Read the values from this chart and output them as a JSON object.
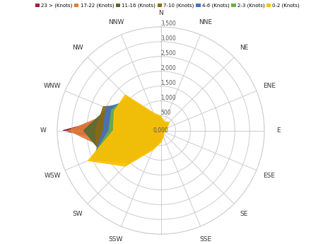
{
  "directions": [
    "N",
    "NNE",
    "NE",
    "ENE",
    "E",
    "ESE",
    "SE",
    "SSE",
    "S",
    "SSW",
    "SW",
    "WSW",
    "W",
    "WNW",
    "NW",
    "NNW"
  ],
  "speed_categories": [
    "23 > (Knots)",
    "17-22 (Knots)",
    "11-16 (Knots)",
    "7-10 (Knots)",
    "4-6 (Knots)",
    "2-3 (Knots)",
    "0-2 (Knots)"
  ],
  "colors": [
    "#9B2335",
    "#E07B39",
    "#556B2F",
    "#8B6914",
    "#4472C4",
    "#70AD47",
    "#FFC000"
  ],
  "rmax": 3500,
  "rticks": [
    500,
    1000,
    1500,
    2000,
    2500,
    3000,
    3500
  ],
  "data": {
    "23+": [
      100,
      50,
      80,
      30,
      20,
      20,
      20,
      40,
      80,
      120,
      350,
      1200,
      3300,
      1400,
      500,
      150
    ],
    "17-22": [
      150,
      80,
      120,
      50,
      30,
      25,
      25,
      60,
      120,
      200,
      600,
      1800,
      3100,
      1700,
      750,
      220
    ],
    "11-16": [
      220,
      120,
      170,
      80,
      50,
      40,
      40,
      90,
      170,
      300,
      850,
      2100,
      2600,
      1950,
      1000,
      310
    ],
    "7-10": [
      300,
      170,
      220,
      110,
      70,
      60,
      60,
      120,
      220,
      400,
      1100,
      2300,
      2200,
      2100,
      1250,
      400
    ],
    "4-6": [
      370,
      220,
      280,
      150,
      100,
      85,
      85,
      150,
      280,
      500,
      1350,
      2450,
      1950,
      2000,
      1450,
      490
    ],
    "2-3": [
      430,
      270,
      340,
      190,
      130,
      110,
      110,
      190,
      340,
      600,
      1550,
      2550,
      1750,
      1800,
      1600,
      570
    ],
    "0-2": [
      480,
      320,
      390,
      230,
      160,
      140,
      140,
      230,
      390,
      700,
      1700,
      2650,
      1600,
      1700,
      1700,
      640
    ]
  },
  "background": "#ffffff",
  "grid_color": "#cccccc"
}
